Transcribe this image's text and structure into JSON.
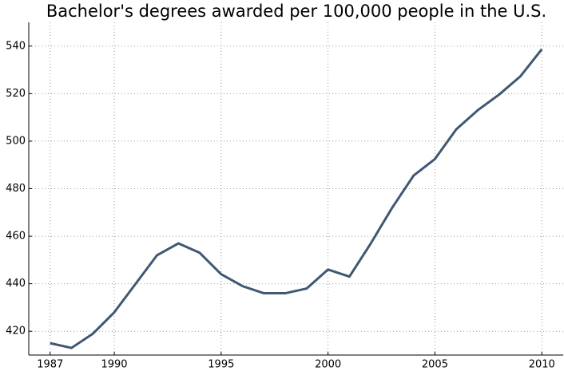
{
  "chart_data": {
    "type": "line",
    "title": "Bachelor's degrees awarded per 100,000 people in the U.S.",
    "x": [
      1987,
      1988,
      1989,
      1990,
      1991,
      1992,
      1993,
      1994,
      1995,
      1996,
      1997,
      1998,
      1999,
      2000,
      2001,
      2002,
      2003,
      2004,
      2005,
      2006,
      2007,
      2008,
      2009,
      2010
    ],
    "values": [
      415,
      413,
      419,
      428,
      440,
      452,
      457,
      453,
      444,
      439,
      436,
      436,
      438,
      446,
      443,
      457,
      472,
      485.5,
      492.5,
      505,
      513,
      519.6,
      527.3,
      538.7
    ],
    "color": "#3f5873",
    "xlim": [
      1986,
      2011
    ],
    "xticks": [
      1987,
      1990,
      1995,
      2000,
      2005,
      2010
    ],
    "ylim": [
      410,
      550
    ],
    "yticks": [
      420,
      440,
      460,
      480,
      500,
      520,
      540
    ],
    "grid": true
  }
}
